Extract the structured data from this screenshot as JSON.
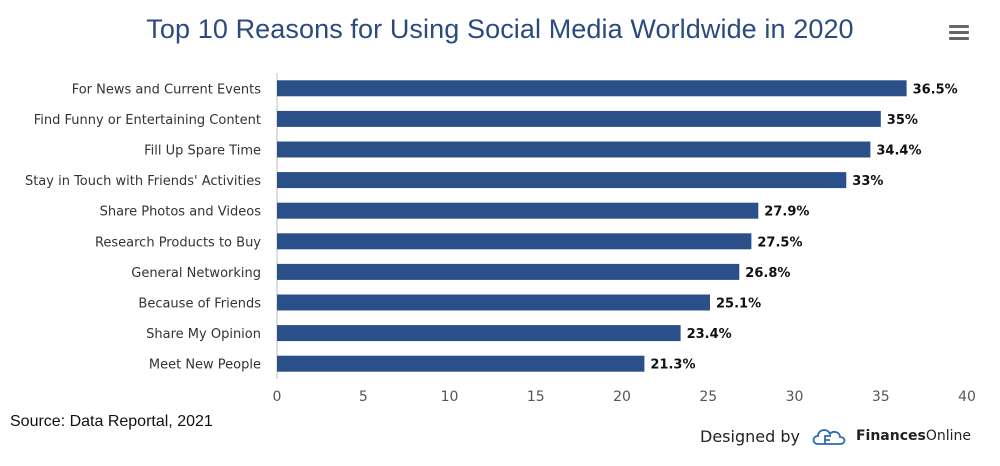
{
  "header": {
    "title": "Top 10 Reasons for Using Social Media Worldwide in 2020",
    "menu_icon": "hamburger-menu-icon"
  },
  "colors": {
    "bar": "#2b5089",
    "title": "#2b4a7e",
    "axis": "#bfbfbf"
  },
  "chart_data": {
    "type": "bar",
    "orientation": "horizontal",
    "title": "Top 10 Reasons for Using Social Media Worldwide in 2020",
    "categories": [
      "For News and Current Events",
      "Find Funny or Entertaining Content",
      "Fill Up Spare Time",
      "Stay in Touch with Friends' Activities",
      "Share Photos and Videos",
      "Research Products to Buy",
      "General Networking",
      "Because of Friends",
      "Share My Opinion",
      "Meet New People"
    ],
    "values": [
      36.5,
      35,
      34.4,
      33,
      27.9,
      27.5,
      26.8,
      25.1,
      23.4,
      21.3
    ],
    "data_labels": [
      "36.5%",
      "35%",
      "34.4%",
      "33%",
      "27.9%",
      "27.5%",
      "26.8%",
      "25.1%",
      "23.4%",
      "21.3%"
    ],
    "xlim": [
      0,
      40
    ],
    "xticks": [
      0,
      5,
      10,
      15,
      20,
      25,
      30,
      35,
      40
    ],
    "grid": false,
    "legend": "none"
  },
  "footer": {
    "source": "Source: Data Reportal, 2021",
    "designed_by": "Designed by",
    "brand_bold": "Finances",
    "brand_rest": "Online"
  }
}
